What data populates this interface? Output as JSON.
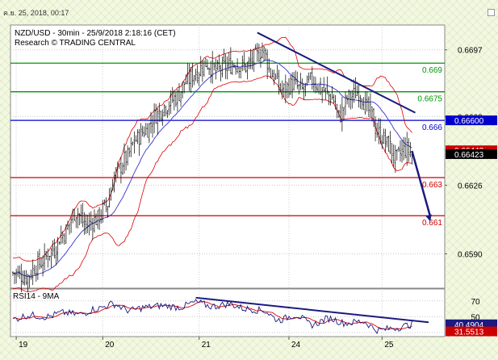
{
  "timestamp": "ค.ย. 25, 2018, 00:17",
  "colors": {
    "green": "#009900",
    "blue": "#0000cc",
    "red": "#cc0000",
    "navy": "#1a1a80",
    "bollinger": "#dd0000",
    "ma": "#3333cc",
    "candle": "#000000"
  },
  "chart_data": [
    {
      "type": "candlestick",
      "title": "NZD/USD - 30min - 25/9/2018 2:18:16 (CET)",
      "subtitle": "Research © TRADING CENTRAL",
      "ylim": [
        0.6572,
        0.671
      ],
      "y_ticks": [
        "0.6697",
        "0.6662",
        "0.6626",
        "0.6590"
      ],
      "y_tick_values": [
        0.6697,
        0.6662,
        0.6626,
        0.659
      ],
      "x_ticks": [
        "19",
        "20",
        "21",
        "24",
        "25"
      ],
      "x_tick_index": [
        2,
        54,
        112,
        166,
        222
      ],
      "levels": [
        {
          "label": "0.669",
          "value": 0.669,
          "color": "green"
        },
        {
          "label": "0.6675",
          "value": 0.6675,
          "color": "green"
        },
        {
          "label": "0.666",
          "value": 0.666,
          "color": "blue"
        },
        {
          "label": "0.663",
          "value": 0.663,
          "color": "red"
        },
        {
          "label": "0.661",
          "value": 0.661,
          "color": "red"
        }
      ],
      "price_tags": [
        {
          "label": "0.66600",
          "value": 0.666,
          "bg": "blue"
        },
        {
          "label": "0.66443",
          "value": 0.66443,
          "bg": "red"
        },
        {
          "label": "0.66423",
          "value": 0.66423,
          "bg": "black"
        }
      ],
      "trendline": {
        "start_index": 147,
        "start_value": 0.6706,
        "end_index": 242,
        "end_value": 0.6664
      },
      "forecast_arrow": {
        "start_index": 240,
        "start_value": 0.6644,
        "end_index": 251,
        "end_value": 0.6607
      },
      "anchors": [
        [
          0,
          0.658
        ],
        [
          8,
          0.6578
        ],
        [
          16,
          0.6585
        ],
        [
          24,
          0.6592
        ],
        [
          30,
          0.66
        ],
        [
          38,
          0.6612
        ],
        [
          44,
          0.6605
        ],
        [
          50,
          0.6608
        ],
        [
          56,
          0.6615
        ],
        [
          62,
          0.6632
        ],
        [
          68,
          0.664
        ],
        [
          74,
          0.665
        ],
        [
          80,
          0.6655
        ],
        [
          86,
          0.6663
        ],
        [
          92,
          0.6668
        ],
        [
          98,
          0.6672
        ],
        [
          104,
          0.668
        ],
        [
          110,
          0.6685
        ],
        [
          116,
          0.669
        ],
        [
          122,
          0.6686
        ],
        [
          128,
          0.6688
        ],
        [
          134,
          0.669
        ],
        [
          140,
          0.6688
        ],
        [
          146,
          0.6693
        ],
        [
          150,
          0.6697
        ],
        [
          156,
          0.6684
        ],
        [
          162,
          0.6676
        ],
        [
          168,
          0.6679
        ],
        [
          174,
          0.6676
        ],
        [
          180,
          0.6681
        ],
        [
          186,
          0.6676
        ],
        [
          192,
          0.6672
        ],
        [
          196,
          0.6662
        ],
        [
          202,
          0.6672
        ],
        [
          208,
          0.6675
        ],
        [
          214,
          0.6665
        ],
        [
          220,
          0.6653
        ],
        [
          226,
          0.6647
        ],
        [
          230,
          0.664
        ],
        [
          236,
          0.6645
        ],
        [
          240,
          0.6643
        ]
      ],
      "candle_count": 241
    },
    {
      "type": "line",
      "title": "RSI14 - 9MA",
      "ylim": [
        25,
        85
      ],
      "y_ticks": [
        "70",
        "50",
        "30"
      ],
      "y_tick_values": [
        70,
        50,
        30
      ],
      "price_tags": [
        {
          "label": "40.4904",
          "value": 40.49,
          "bg": "navy"
        },
        {
          "label": "31.5513",
          "value": 31.55,
          "bg": "red"
        }
      ],
      "trendline": {
        "start_index": 110,
        "start_value": 74,
        "end_index": 250,
        "end_value": 43
      },
      "anchors": [
        [
          0,
          47
        ],
        [
          10,
          52
        ],
        [
          20,
          50
        ],
        [
          30,
          55
        ],
        [
          40,
          53
        ],
        [
          50,
          60
        ],
        [
          60,
          66
        ],
        [
          70,
          58
        ],
        [
          80,
          62
        ],
        [
          90,
          64
        ],
        [
          100,
          62
        ],
        [
          110,
          68
        ],
        [
          120,
          63
        ],
        [
          130,
          66
        ],
        [
          140,
          60
        ],
        [
          150,
          58
        ],
        [
          160,
          46
        ],
        [
          170,
          52
        ],
        [
          180,
          40
        ],
        [
          190,
          48
        ],
        [
          200,
          42
        ],
        [
          210,
          44
        ],
        [
          220,
          33
        ],
        [
          230,
          36
        ],
        [
          240,
          40
        ]
      ]
    }
  ]
}
